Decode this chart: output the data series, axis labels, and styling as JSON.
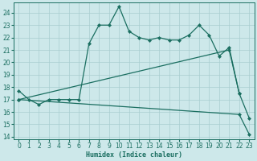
{
  "xlabel": "Humidex (Indice chaleur)",
  "background_color": "#cde8ea",
  "grid_color": "#a8cdd0",
  "line_color": "#1a6e60",
  "xlim": [
    -0.5,
    23.5
  ],
  "ylim": [
    13.8,
    24.8
  ],
  "yticks": [
    14,
    15,
    16,
    17,
    18,
    19,
    20,
    21,
    22,
    23,
    24
  ],
  "xticks": [
    0,
    1,
    2,
    3,
    4,
    5,
    6,
    7,
    8,
    9,
    10,
    11,
    12,
    13,
    14,
    15,
    16,
    17,
    18,
    19,
    20,
    21,
    22,
    23
  ],
  "line1_x": [
    0,
    1,
    2,
    3,
    4,
    5,
    6,
    7,
    8,
    9,
    10,
    11,
    12,
    13,
    14,
    15,
    16,
    17,
    18,
    19,
    20,
    21,
    22
  ],
  "line1_y": [
    17.7,
    17.0,
    16.6,
    17.0,
    17.0,
    17.0,
    17.0,
    21.5,
    23.0,
    23.0,
    24.5,
    22.5,
    22.0,
    21.8,
    22.0,
    21.8,
    21.8,
    22.2,
    23.0,
    22.2,
    20.5,
    21.2,
    17.5
  ],
  "line2_x": [
    0,
    21,
    22,
    23
  ],
  "line2_y": [
    17.0,
    21.0,
    17.5,
    15.5
  ],
  "line3_x": [
    0,
    22,
    23
  ],
  "line3_y": [
    17.0,
    15.8,
    14.2
  ],
  "tick_fontsize": 5.5,
  "xlabel_fontsize": 6
}
